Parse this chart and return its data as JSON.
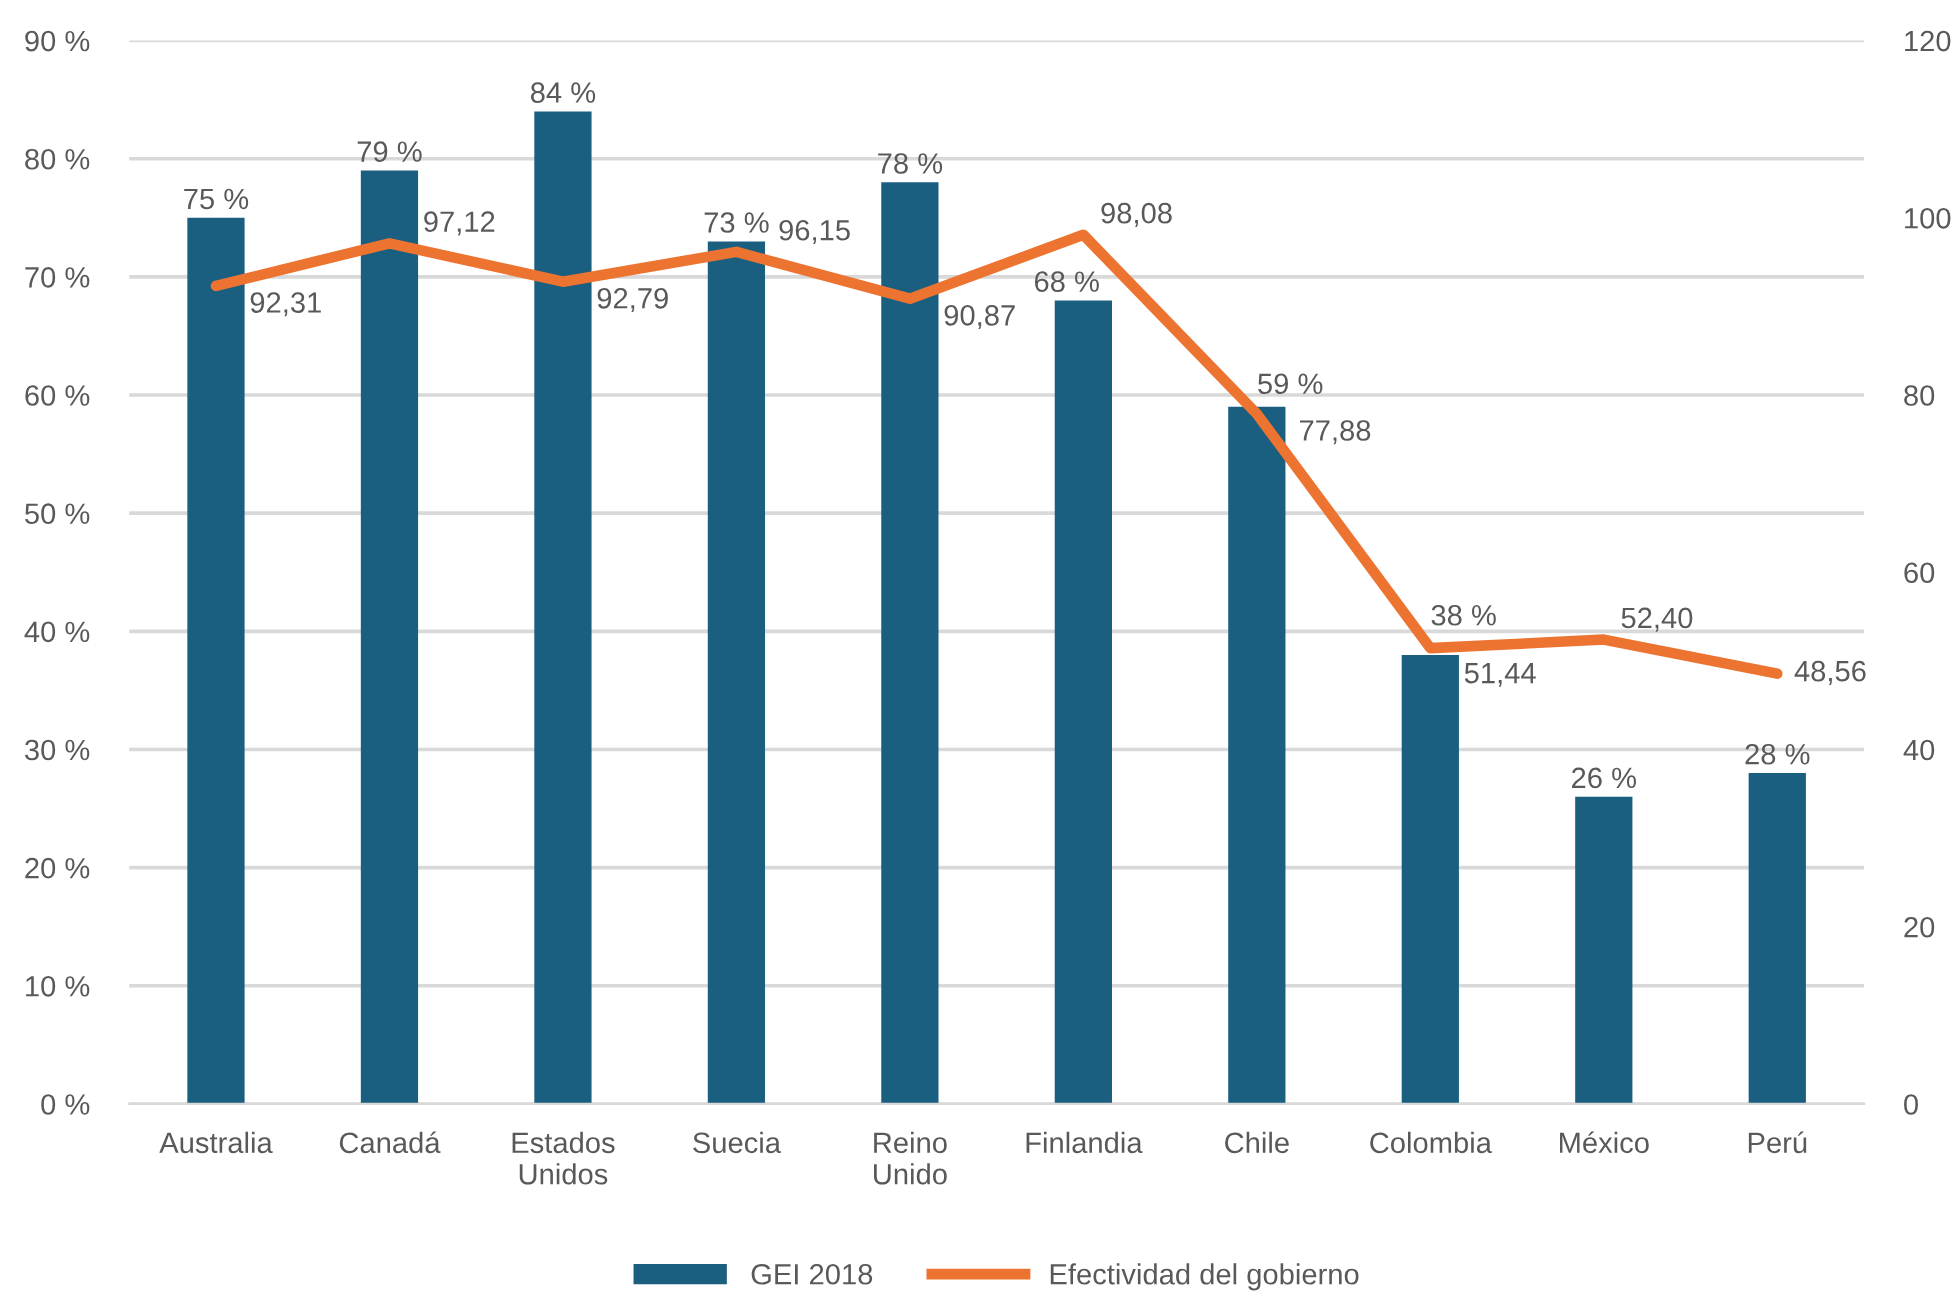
{
  "chart_data": {
    "type": "bar",
    "categories": [
      "Australia",
      "Canadá",
      "Estados\nUnidos",
      "Suecia",
      "Reino\nUnido",
      "Finlandia",
      "Chile",
      "Colombia",
      "México",
      "Perú"
    ],
    "series": [
      {
        "name": "GEI 2018",
        "color": "#1a5e80",
        "values": [
          75,
          79,
          84,
          73,
          78,
          68,
          59,
          38,
          26,
          28
        ],
        "value_labels": [
          "75 %",
          "79 %",
          "84 %",
          "73 %",
          "78 %",
          "68 %",
          "59 %",
          "38 %",
          "26 %",
          "28 %"
        ]
      },
      {
        "name": "Efectividad del gobierno",
        "type": "line",
        "axis": "y2",
        "color": "#ed7330",
        "values": [
          92.31,
          97.12,
          92.79,
          96.15,
          90.87,
          98.08,
          77.88,
          51.44,
          52.4,
          48.56
        ],
        "value_labels": [
          "92,31",
          "97,12",
          "92,79",
          "96,15",
          "90,87",
          "98,08",
          "77,88",
          "51,44",
          "52,40",
          "48,56"
        ]
      }
    ],
    "ylim": [
      0,
      90
    ],
    "yticks": [
      {
        "value": 0,
        "label": "0 %"
      },
      {
        "value": 10,
        "label": "10 %"
      },
      {
        "value": 20,
        "label": "20 %"
      },
      {
        "value": 30,
        "label": "30 %"
      },
      {
        "value": 40,
        "label": "40 %"
      },
      {
        "value": 50,
        "label": "50 %"
      },
      {
        "value": 60,
        "label": "60 %"
      },
      {
        "value": 70,
        "label": "70 %"
      },
      {
        "value": 80,
        "label": "80 %"
      },
      {
        "value": 90,
        "label": "90 %"
      }
    ],
    "y2lim": [
      0,
      120
    ],
    "y2ticks": [
      0,
      20,
      40,
      60,
      80,
      100,
      120
    ],
    "grid": "y",
    "legend": "bottom"
  }
}
